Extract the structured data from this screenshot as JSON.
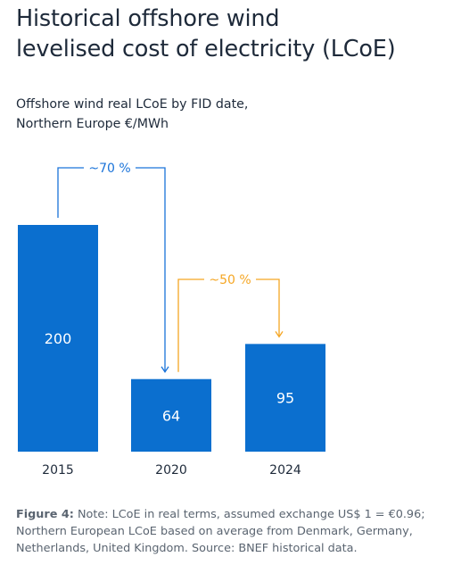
{
  "title_line1": "Historical offshore wind",
  "title_line2": "levelised cost of electricity (LCoE)",
  "subtitle_line1": "Offshore wind real LCoE by FID date,",
  "subtitle_line2": "Northern Europe €/MWh",
  "caption": {
    "label": "Figure 4:",
    "text": " Note: LCoE in real terms, assumed exchange US$ 1 = €0.96; Northern European LCoE based on average from Denmark, Germany, Netherlands, United Kingdom. Source: BNEF historical data."
  },
  "colors": {
    "bar": "#0b6fcf",
    "arrow_blue": "#1a73d9",
    "arrow_orange": "#f5a623",
    "text": "#1e2a3a"
  },
  "chart_data": {
    "type": "bar",
    "title": "",
    "xlabel": "",
    "ylabel": "",
    "categories": [
      "2015",
      "2020",
      "2024"
    ],
    "values": [
      200,
      64,
      95
    ],
    "ylim": [
      0,
      200
    ],
    "grid": false,
    "annotations": [
      {
        "from": "2015",
        "to": "2020",
        "text": "~70 %",
        "color": "#1a73d9"
      },
      {
        "from": "2020",
        "to": "2024",
        "text": "~50 %",
        "color": "#f5a623"
      }
    ]
  }
}
